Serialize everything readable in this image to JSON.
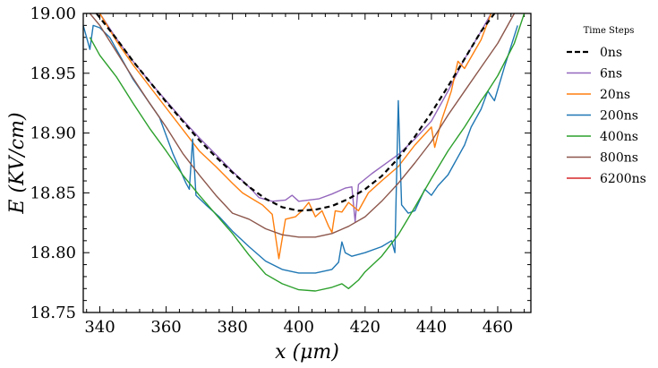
{
  "chart_data": {
    "type": "line",
    "xlabel": "x (μm)",
    "ylabel": "E (KV/cm)",
    "xlim": [
      335,
      470
    ],
    "ylim": [
      18.75,
      19.0
    ],
    "x_ticks": [
      "340",
      "360",
      "380",
      "400",
      "420",
      "440",
      "460"
    ],
    "y_ticks": [
      "18.75",
      "18.80",
      "18.85",
      "18.90",
      "18.95",
      "19.00"
    ],
    "legend_title": "Time Steps",
    "legend_position": "outside-right",
    "series": [
      {
        "name": "0ns",
        "color": "#000000",
        "dashed": true,
        "x": [
          339,
          345,
          350,
          355,
          360,
          365,
          370,
          375,
          380,
          385,
          390,
          395,
          400,
          405,
          410,
          415,
          420,
          425,
          430,
          435,
          440,
          445,
          450,
          455,
          459
        ],
        "y": [
          19.0,
          18.979,
          18.96,
          18.943,
          18.926,
          18.91,
          18.894,
          18.88,
          18.867,
          18.855,
          18.845,
          18.838,
          18.835,
          18.836,
          18.839,
          18.845,
          18.853,
          18.864,
          18.879,
          18.897,
          18.917,
          18.939,
          18.962,
          18.985,
          19.0
        ]
      },
      {
        "name": "6ns",
        "color": "#9467bd",
        "dashed": false,
        "x": [
          340,
          345,
          350,
          355,
          360,
          365,
          370,
          375,
          380,
          385,
          388,
          392,
          396,
          398,
          400,
          403,
          406,
          410,
          414,
          416,
          417,
          418,
          422,
          426,
          430,
          435,
          440,
          445,
          450,
          455,
          458
        ],
        "y": [
          19.0,
          18.979,
          18.96,
          18.943,
          18.927,
          18.911,
          18.896,
          18.882,
          18.868,
          18.855,
          18.846,
          18.843,
          18.844,
          18.848,
          18.843,
          18.844,
          18.845,
          18.849,
          18.854,
          18.855,
          18.826,
          18.857,
          18.866,
          18.874,
          18.882,
          18.895,
          18.91,
          18.935,
          18.962,
          18.985,
          19.0
        ]
      },
      {
        "name": "20ns",
        "color": "#ff7f0e",
        "dashed": false,
        "x": [
          340,
          345,
          350,
          355,
          360,
          365,
          370,
          375,
          380,
          383,
          386,
          389,
          392,
          394,
          396,
          399,
          401,
          403,
          405,
          407,
          409,
          410,
          411,
          413,
          415,
          418,
          421,
          425,
          430,
          435,
          440,
          441,
          443,
          446,
          448,
          450,
          455,
          458
        ],
        "y": [
          19.0,
          18.977,
          18.957,
          18.939,
          18.921,
          18.903,
          18.885,
          18.872,
          18.858,
          18.85,
          18.845,
          18.84,
          18.832,
          18.795,
          18.828,
          18.83,
          18.835,
          18.842,
          18.83,
          18.835,
          18.822,
          18.817,
          18.835,
          18.834,
          18.842,
          18.835,
          18.85,
          18.86,
          18.872,
          18.89,
          18.905,
          18.888,
          18.91,
          18.935,
          18.96,
          18.954,
          18.978,
          19.0
        ]
      },
      {
        "name": "200ns",
        "color": "#1f77b4",
        "dashed": false,
        "x": [
          335,
          336,
          337,
          338,
          340,
          343,
          345,
          350,
          355,
          358,
          362,
          366,
          367,
          368,
          369,
          372,
          376,
          380,
          385,
          390,
          395,
          400,
          405,
          410,
          412,
          413,
          414,
          416,
          420,
          425,
          428,
          429,
          430,
          431,
          433,
          435,
          438,
          440,
          442,
          445,
          450,
          452,
          455,
          457,
          459,
          462,
          466
        ],
        "y": [
          18.99,
          18.98,
          18.97,
          18.99,
          18.988,
          18.98,
          18.97,
          18.945,
          18.925,
          18.913,
          18.883,
          18.858,
          18.853,
          18.895,
          18.848,
          18.84,
          18.83,
          18.818,
          18.805,
          18.793,
          18.786,
          18.783,
          18.783,
          18.786,
          18.792,
          18.809,
          18.8,
          18.797,
          18.8,
          18.805,
          18.81,
          18.8,
          18.927,
          18.84,
          18.833,
          18.835,
          18.853,
          18.848,
          18.856,
          18.865,
          18.89,
          18.905,
          18.92,
          18.935,
          18.927,
          18.955,
          18.99
        ]
      },
      {
        "name": "400ns",
        "color": "#2ca02c",
        "dashed": false,
        "x": [
          337,
          340,
          345,
          350,
          355,
          360,
          365,
          370,
          375,
          380,
          385,
          390,
          395,
          400,
          405,
          410,
          413,
          415,
          418,
          420,
          425,
          430,
          435,
          440,
          445,
          450,
          455,
          457,
          460,
          465,
          468
        ],
        "y": [
          18.98,
          18.965,
          18.947,
          18.925,
          18.904,
          18.885,
          18.865,
          18.848,
          18.832,
          18.816,
          18.798,
          18.782,
          18.774,
          18.769,
          18.768,
          18.771,
          18.774,
          18.77,
          18.777,
          18.784,
          18.797,
          18.815,
          18.838,
          18.862,
          18.885,
          18.905,
          18.927,
          18.935,
          18.948,
          18.975,
          19.0
        ]
      },
      {
        "name": "800ns",
        "color": "#8c564b",
        "dashed": false,
        "x": [
          337,
          340,
          345,
          350,
          355,
          360,
          365,
          370,
          375,
          380,
          385,
          390,
          395,
          400,
          405,
          410,
          415,
          420,
          425,
          430,
          435,
          440,
          445,
          450,
          455,
          460,
          463,
          465
        ],
        "y": [
          19.0,
          18.99,
          18.968,
          18.946,
          18.925,
          18.905,
          18.883,
          18.865,
          18.848,
          18.833,
          18.828,
          18.82,
          18.815,
          18.813,
          18.813,
          18.816,
          18.822,
          18.83,
          18.843,
          18.858,
          18.875,
          18.893,
          18.915,
          18.935,
          18.955,
          18.975,
          18.99,
          19.0
        ]
      },
      {
        "name": "6200ns",
        "color": "#d62728",
        "dashed": false,
        "x": [],
        "y": []
      }
    ]
  }
}
